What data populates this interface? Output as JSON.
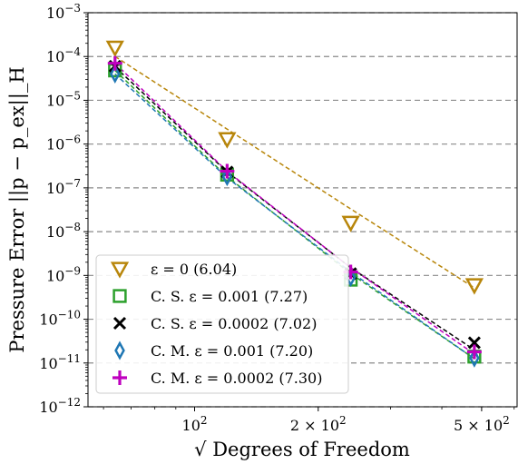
{
  "chart_data": {
    "type": "scatter",
    "title": "",
    "xlabel": "√ Degrees of Freedom",
    "ylabel": "Pressure Error ||p − p_ex||_H",
    "xscale": "log",
    "yscale": "log",
    "xlim": [
      55,
      610
    ],
    "ylim": [
      1e-12,
      0.001
    ],
    "grid": "horizontal dashed",
    "legend_position": "lower-left",
    "x_ticks": [
      {
        "value": 100,
        "base": "10",
        "exp": "2"
      },
      {
        "value": 200,
        "base": "2 × 10",
        "exp": "2"
      },
      {
        "value": 500,
        "base": "5 × 10",
        "exp": "2"
      }
    ],
    "y_ticks": [
      {
        "value": 1e-12,
        "exp": "−12"
      },
      {
        "value": 1e-11,
        "exp": "−11"
      },
      {
        "value": 1e-10,
        "exp": "−10"
      },
      {
        "value": 1e-09,
        "exp": "−9"
      },
      {
        "value": 1e-08,
        "exp": "−8"
      },
      {
        "value": 1e-07,
        "exp": "−7"
      },
      {
        "value": 1e-06,
        "exp": "−6"
      },
      {
        "value": 1e-05,
        "exp": "−5"
      },
      {
        "value": 0.0001,
        "exp": "−4"
      },
      {
        "value": 0.001,
        "exp": "−3"
      }
    ],
    "series": [
      {
        "name": "ε = 0 (6.04)",
        "color": "#b8860b",
        "marker": "triangle-down",
        "x": [
          64,
          120,
          240,
          480
        ],
        "y": [
          0.00016,
          1.3e-06,
          1.6e-08,
          6e-10
        ],
        "fit_y": [
          0.0001,
          2.2e-06,
          3.3e-08,
          5.2e-10
        ]
      },
      {
        "name": "C. S. ε = 0.001 (7.27)",
        "color": "#2ca02c",
        "marker": "square",
        "x": [
          64,
          120,
          240,
          480
        ],
        "y": [
          4.8e-05,
          2e-07,
          8e-10,
          1.4e-11
        ],
        "fit_y": [
          4.8e-05,
          1.8e-07,
          1.1e-09,
          1.25e-11
        ]
      },
      {
        "name": "C. S. ε = 0.0002 (7.02)",
        "color": "#000000",
        "marker": "x",
        "x": [
          64,
          120,
          240,
          480
        ],
        "y": [
          6e-05,
          2.3e-07,
          1.1e-09,
          2.9e-11
        ],
        "fit_y": [
          5.8e-05,
          2.3e-07,
          1.5e-09,
          2e-11
        ]
      },
      {
        "name": "C. M. ε = 0.001 (7.20)",
        "color": "#1f77b4",
        "marker": "diamond",
        "x": [
          64,
          120,
          240,
          480
        ],
        "y": [
          4e-05,
          1.8e-07,
          9e-10,
          1.3e-11
        ],
        "fit_y": [
          4e-05,
          1.7e-07,
          1.2e-09,
          1.25e-11
        ]
      },
      {
        "name": "C. M. ε = 0.0002 (7.30)",
        "color": "#bf00bf",
        "marker": "plus",
        "x": [
          64,
          120,
          240,
          480
        ],
        "y": [
          7e-05,
          2.4e-07,
          1.2e-09,
          1.8e-11
        ],
        "fit_y": [
          7e-05,
          2.4e-07,
          1.5e-09,
          1.6e-11
        ]
      }
    ]
  }
}
